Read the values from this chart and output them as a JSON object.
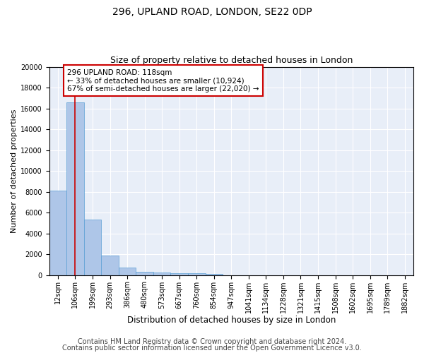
{
  "title1": "296, UPLAND ROAD, LONDON, SE22 0DP",
  "title2": "Size of property relative to detached houses in London",
  "xlabel": "Distribution of detached houses by size in London",
  "ylabel": "Number of detached properties",
  "categories": [
    "12sqm",
    "106sqm",
    "199sqm",
    "293sqm",
    "386sqm",
    "480sqm",
    "573sqm",
    "667sqm",
    "760sqm",
    "854sqm",
    "947sqm",
    "1041sqm",
    "1134sqm",
    "1228sqm",
    "1321sqm",
    "1415sqm",
    "1508sqm",
    "1602sqm",
    "1695sqm",
    "1789sqm",
    "1882sqm"
  ],
  "values": [
    8100,
    16600,
    5300,
    1850,
    700,
    350,
    270,
    200,
    175,
    100,
    0,
    0,
    0,
    0,
    0,
    0,
    0,
    0,
    0,
    0,
    0
  ],
  "bar_color": "#aec6e8",
  "bar_edge_color": "#5a9fd4",
  "vline_x": 1.0,
  "vline_color": "#cc0000",
  "annotation_text": "296 UPLAND ROAD: 118sqm\n← 33% of detached houses are smaller (10,924)\n67% of semi-detached houses are larger (22,020) →",
  "annotation_box_color": "#ffffff",
  "annotation_box_edge": "#cc0000",
  "ylim": [
    0,
    20000
  ],
  "yticks": [
    0,
    2000,
    4000,
    6000,
    8000,
    10000,
    12000,
    14000,
    16000,
    18000,
    20000
  ],
  "background_color": "#e8eef8",
  "grid_color": "#ffffff",
  "footer1": "Contains HM Land Registry data © Crown copyright and database right 2024.",
  "footer2": "Contains public sector information licensed under the Open Government Licence v3.0.",
  "title1_fontsize": 10,
  "title2_fontsize": 9,
  "xlabel_fontsize": 8.5,
  "ylabel_fontsize": 8,
  "tick_fontsize": 7,
  "footer_fontsize": 7,
  "annot_fontsize": 7.5
}
